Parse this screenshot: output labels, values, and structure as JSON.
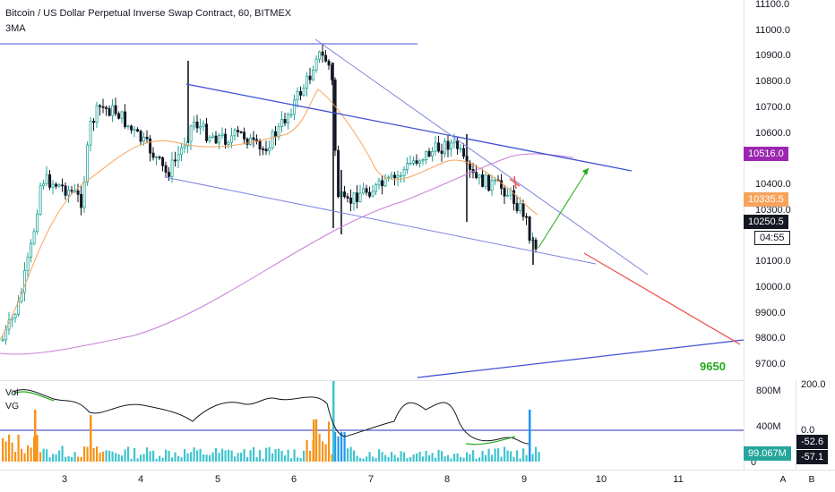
{
  "header": {
    "symbol_title": "Bitcoin / US Dollar Perpetual Inverse Swap Contract, 60, BITMEX",
    "indicator_name": "3MA"
  },
  "volume_pane": {
    "label_vol": "Vol",
    "label_vg": "VG",
    "axis_ticks": [
      "800M",
      "400M",
      "0"
    ],
    "tag_value": "99.067M",
    "osc_axis_ticks": [
      "200.0",
      "0.0"
    ],
    "osc_values": [
      "-52.6",
      "-57.1"
    ]
  },
  "price_axis": {
    "ticks": [
      "11100.0",
      "11000.0",
      "10900.0",
      "10800.0",
      "10700.0",
      "10600.0",
      "10400.0",
      "10300.0",
      "10100.0",
      "10000.0",
      "9900.0",
      "9800.0",
      "9700.0"
    ],
    "tag_ma_purple": "10516.0",
    "tag_ma_orange": "10335.5",
    "tag_last_price": "10250.5",
    "tag_countdown": "04:55",
    "partial_label": "10"
  },
  "time_axis": {
    "labels": [
      "3",
      "4",
      "5",
      "6",
      "7",
      "8",
      "9",
      "10",
      "11"
    ]
  },
  "annotations": {
    "target_label": "9650"
  },
  "corner_buttons": [
    "A",
    "B"
  ],
  "colors": {
    "up": "#26a69a",
    "down": "#131722",
    "ma_orange": "#f7a35c",
    "ma_purple": "#c77fd6",
    "trendline_blue": "#3f51d3",
    "trendline_light": "#7e83e0",
    "arrow_green": "#22ab1a",
    "projection_red": "#ef5350",
    "vol_orange": "#f7931a",
    "vol_teal": "#40c4cf",
    "vol_blue": "#2196f3"
  }
}
